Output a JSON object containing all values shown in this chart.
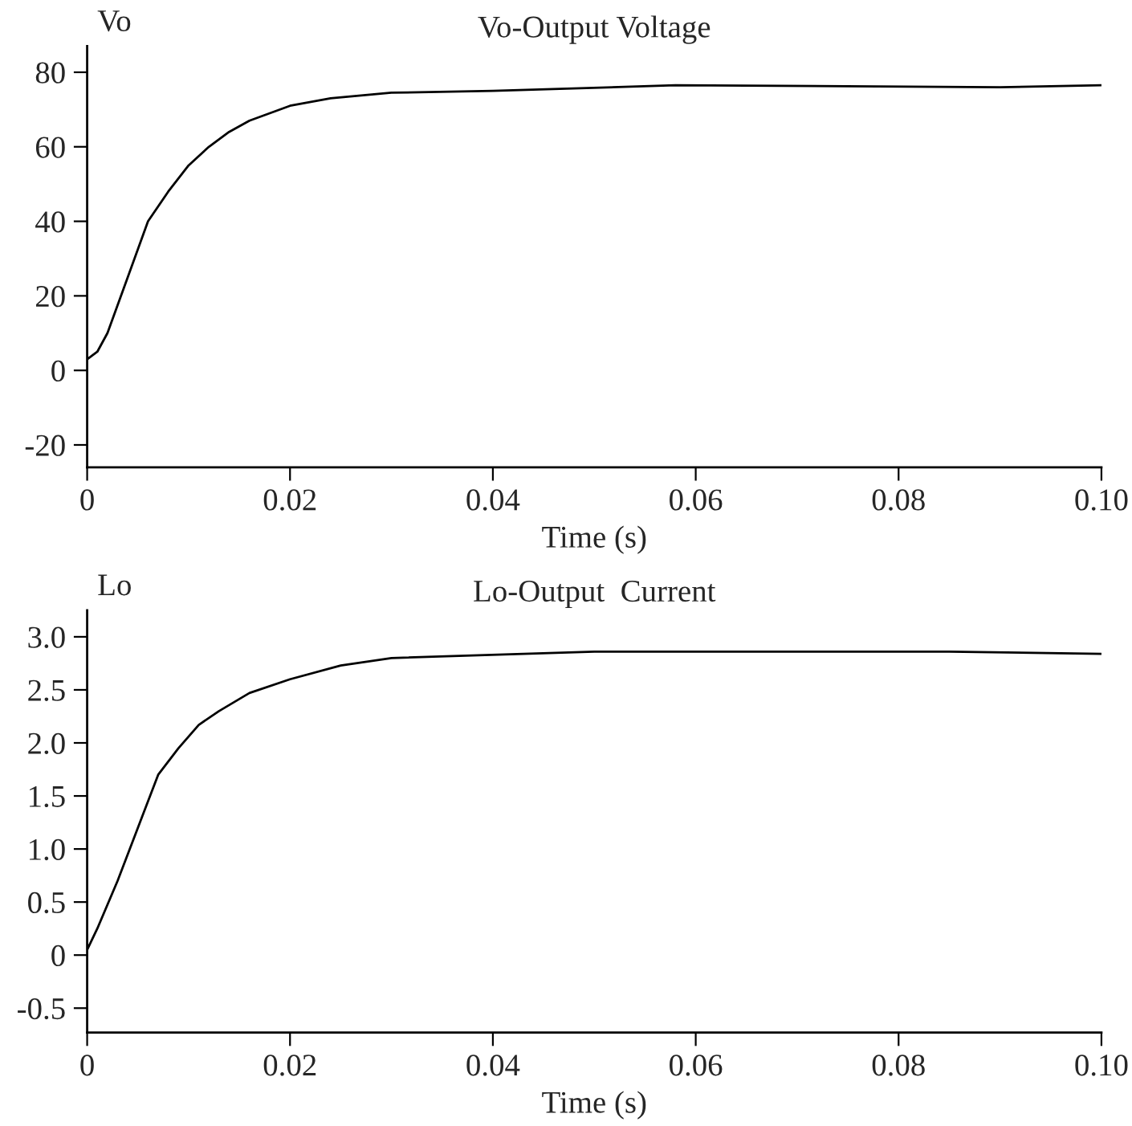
{
  "chart_data": [
    {
      "type": "line",
      "title": "Vo-Output Voltage",
      "ylabel": "Vo",
      "xlabel": "Time (s)",
      "grid": false,
      "marker": "none",
      "line_style": "solid",
      "x": [
        0,
        0.001,
        0.002,
        0.004,
        0.006,
        0.008,
        0.01,
        0.012,
        0.014,
        0.016,
        0.018,
        0.02,
        0.024,
        0.03,
        0.04,
        0.058,
        0.09,
        0.1
      ],
      "series": [
        {
          "color": "#000000",
          "values": [
            3,
            5,
            10,
            25,
            40,
            48,
            55,
            60,
            64,
            67,
            69,
            71,
            73,
            74.5,
            75,
            76.5,
            76,
            76.5
          ]
        }
      ],
      "xlim": [
        0,
        0.1
      ],
      "xticks": [
        0,
        0.02,
        0.04,
        0.06,
        0.08,
        {
          "value": 0.1,
          "label": "0.10"
        }
      ],
      "ylim": [
        -26,
        87
      ],
      "yticks": [
        -20,
        0,
        20,
        40,
        60,
        80
      ]
    },
    {
      "type": "line",
      "title": "Lo-Output  Current",
      "ylabel": "Lo",
      "xlabel": "Time (s)",
      "grid": false,
      "marker": "none",
      "line_style": "solid",
      "x": [
        0,
        0.001,
        0.003,
        0.005,
        0.007,
        0.009,
        0.011,
        0.013,
        0.016,
        0.02,
        0.025,
        0.03,
        0.05,
        0.085,
        0.1
      ],
      "series": [
        {
          "color": "#000000",
          "values": [
            0.05,
            0.25,
            0.7,
            1.2,
            1.7,
            1.95,
            2.17,
            2.3,
            2.47,
            2.6,
            2.73,
            2.8,
            2.86,
            2.86,
            2.84
          ]
        }
      ],
      "xlim": [
        0,
        0.1
      ],
      "xticks": [
        0,
        0.02,
        0.04,
        0.06,
        0.08,
        {
          "value": 0.1,
          "label": "0.10"
        }
      ],
      "ylim": [
        -0.73,
        3.25
      ],
      "yticks": [
        -0.5,
        0,
        0.5,
        {
          "value": 1.0,
          "label": "1.0"
        },
        1.5,
        {
          "value": 2.0,
          "label": "2.0"
        },
        2.5,
        {
          "value": 3.0,
          "label": "3.0"
        }
      ]
    }
  ]
}
